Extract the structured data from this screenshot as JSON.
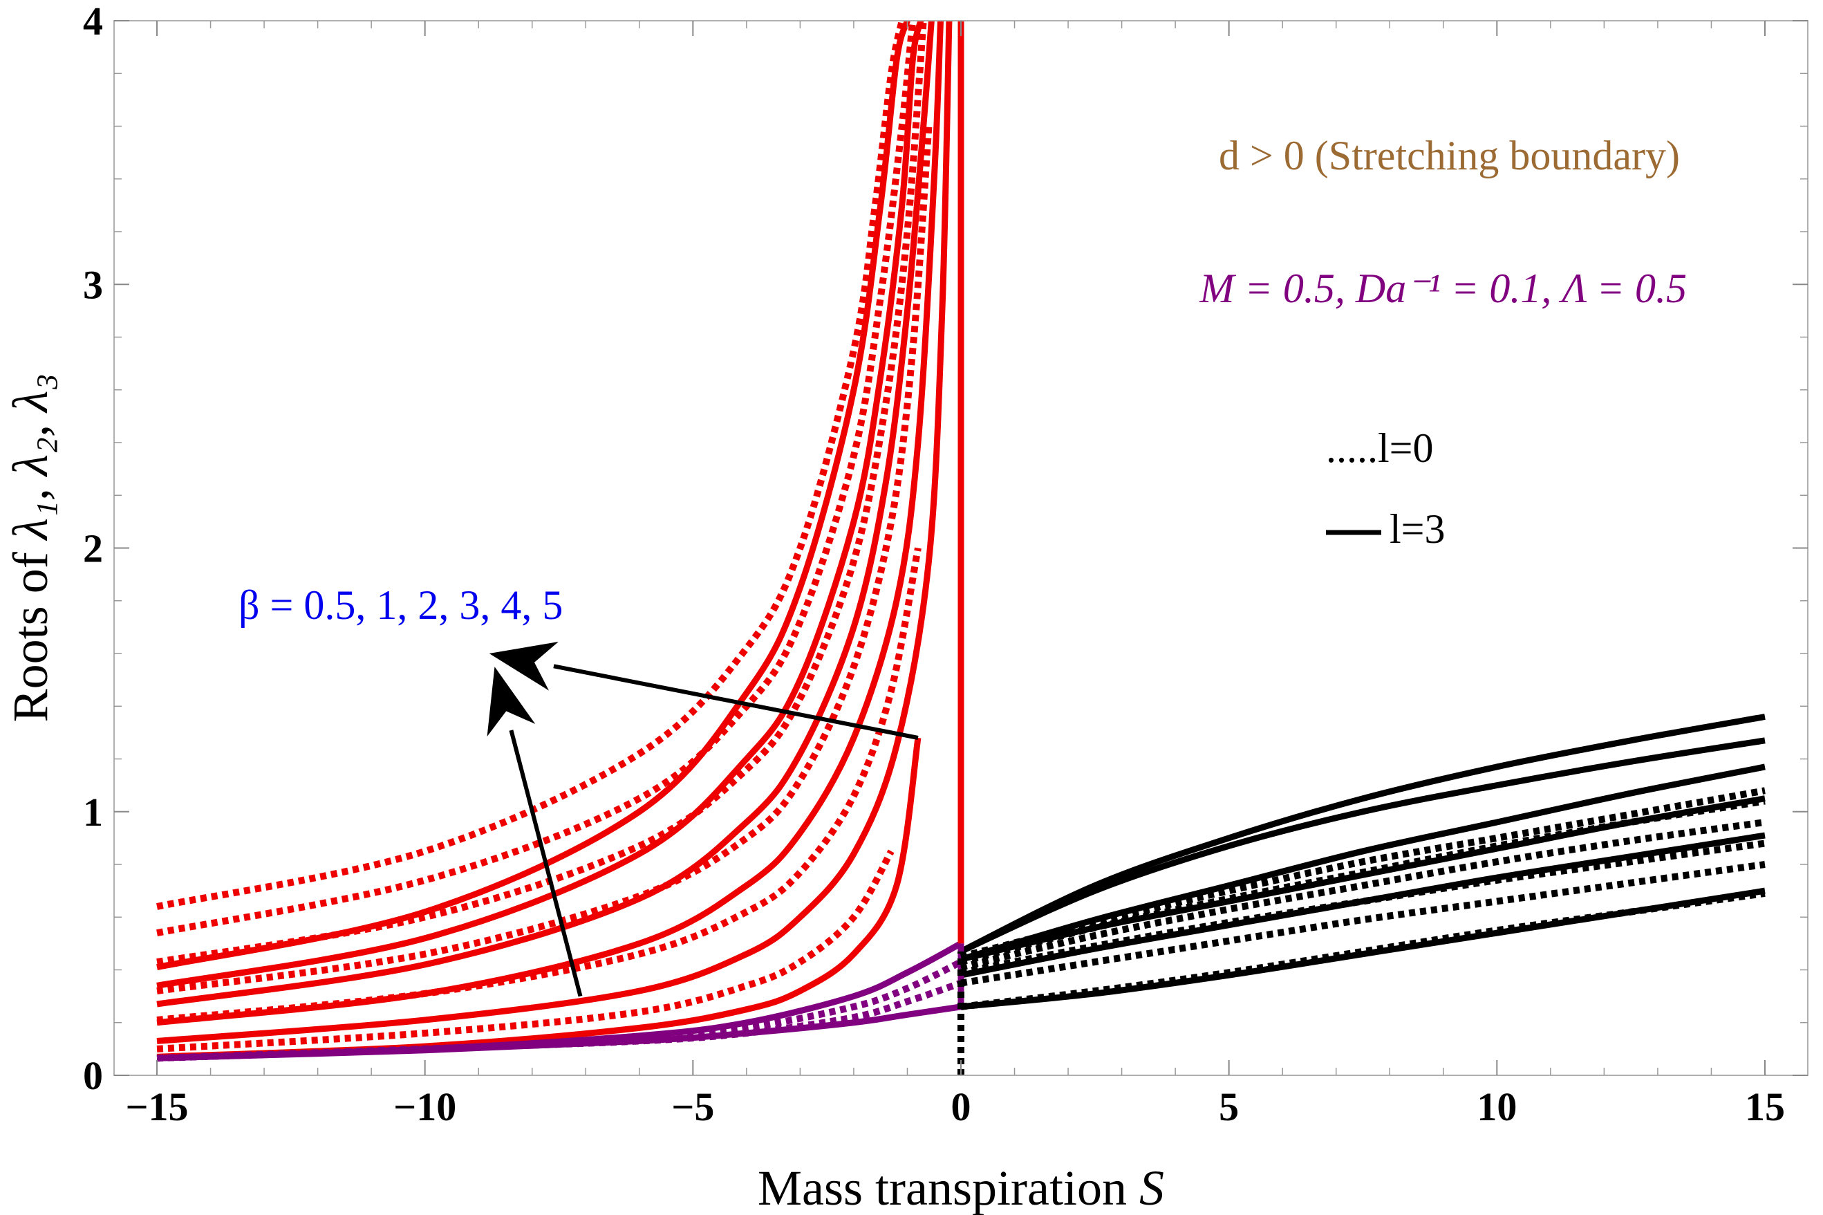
{
  "chart_data": {
    "type": "line",
    "title": "",
    "xlabel": "Mass transpiration",
    "xlabel_var": "S",
    "ylabel_prefix": "Roots of ",
    "ylabel_vars": "λ₁, λ₂, λ₃",
    "xlim": [
      -15.8,
      15.8
    ],
    "ylim": [
      0,
      4
    ],
    "x_ticks": [
      -15,
      -10,
      -5,
      0,
      5,
      10,
      15
    ],
    "x_tick_labels": [
      "−15",
      "−10",
      "−5",
      "0",
      "5",
      "10",
      "15"
    ],
    "y_ticks": [
      0,
      1,
      2,
      3,
      4
    ],
    "y_tick_labels": [
      "0",
      "1",
      "2",
      "3",
      "4"
    ],
    "colors": {
      "red": "#ee0000",
      "purple": "#800080",
      "black": "#000000",
      "blue": "#0000ee",
      "brown": "#9c6a33"
    },
    "annotations": {
      "regime": "d > 0 (Stretching boundary)",
      "params": "M = 0.5, Da⁻¹ = 0.1, Λ = 0.5",
      "beta": "β = 0.5, 1, 2, 3, 4, 5",
      "legend_dotted": ".....l=0",
      "legend_solid": "l=3"
    },
    "series": [
      {
        "name": "red l=3 β1",
        "color": "red",
        "style": "solid",
        "x": [
          -15,
          -10,
          -6,
          -4,
          -3,
          -2,
          -1.5,
          -1.2,
          -1.0
        ],
        "y": [
          0.41,
          0.62,
          1.0,
          1.45,
          1.85,
          2.6,
          3.3,
          3.85,
          4.0
        ]
      },
      {
        "name": "red l=3 β2",
        "color": "red",
        "style": "solid",
        "x": [
          -15,
          -10,
          -6,
          -4,
          -3,
          -2,
          -1.5,
          -1.1,
          -0.9,
          -0.75
        ],
        "y": [
          0.34,
          0.52,
          0.84,
          1.2,
          1.5,
          2.1,
          2.65,
          3.3,
          3.85,
          4.0
        ]
      },
      {
        "name": "red l=3 β3",
        "color": "red",
        "style": "solid",
        "x": [
          -15,
          -10,
          -6,
          -4,
          -3,
          -2,
          -1.4,
          -1.0,
          -0.7,
          -0.55
        ],
        "y": [
          0.27,
          0.42,
          0.67,
          0.96,
          1.22,
          1.7,
          2.25,
          2.9,
          3.6,
          4.0
        ]
      },
      {
        "name": "red l=3 β4",
        "color": "red",
        "style": "solid",
        "x": [
          -15,
          -10,
          -6,
          -4,
          -3,
          -2,
          -1.2,
          -0.8,
          -0.5,
          -0.38
        ],
        "y": [
          0.2,
          0.31,
          0.5,
          0.72,
          0.92,
          1.28,
          1.8,
          2.4,
          3.4,
          4.0
        ]
      },
      {
        "name": "red l=3 β5",
        "color": "red",
        "style": "solid",
        "x": [
          -15,
          -10,
          -6,
          -4,
          -3,
          -2,
          -1.2,
          -0.6,
          -0.35,
          -0.22
        ],
        "y": [
          0.13,
          0.21,
          0.32,
          0.46,
          0.6,
          0.84,
          1.25,
          1.95,
          2.9,
          4.0
        ]
      },
      {
        "name": "red l=3 β6",
        "color": "red",
        "style": "solid",
        "x": [
          -15,
          -10,
          -6,
          -4,
          -3,
          -2,
          -1.2,
          -0.8
        ],
        "y": [
          0.07,
          0.11,
          0.18,
          0.25,
          0.32,
          0.46,
          0.72,
          1.28
        ]
      },
      {
        "name": "red l=0 β1",
        "color": "red",
        "style": "dotted",
        "x": [
          -15,
          -10,
          -6,
          -4,
          -3,
          -2,
          -1.6,
          -1.3,
          -1.1
        ],
        "y": [
          0.64,
          0.85,
          1.22,
          1.62,
          2.0,
          2.75,
          3.3,
          3.8,
          4.0
        ]
      },
      {
        "name": "red l=0 β2",
        "color": "red",
        "style": "dotted",
        "x": [
          -15,
          -10,
          -6,
          -4,
          -3,
          -2,
          -1.5,
          -1.1,
          -0.9
        ],
        "y": [
          0.54,
          0.74,
          1.05,
          1.4,
          1.72,
          2.35,
          2.95,
          3.6,
          4.0
        ]
      },
      {
        "name": "red l=0 β3",
        "color": "red",
        "style": "dotted",
        "x": [
          -15,
          -10,
          -6,
          -4,
          -3,
          -2,
          -1.4,
          -1.0,
          -0.7
        ],
        "y": [
          0.43,
          0.6,
          0.87,
          1.16,
          1.43,
          1.95,
          2.55,
          3.2,
          4.0
        ]
      },
      {
        "name": "red l=0 β4",
        "color": "red",
        "style": "dotted",
        "x": [
          -15,
          -10,
          -6,
          -4,
          -3,
          -2,
          -1.3,
          -0.9,
          -0.6
        ],
        "y": [
          0.32,
          0.46,
          0.68,
          0.9,
          1.12,
          1.55,
          2.1,
          2.75,
          3.6
        ]
      },
      {
        "name": "red l=0 β5",
        "color": "red",
        "style": "dotted",
        "x": [
          -15,
          -10,
          -6,
          -4,
          -3,
          -2,
          -1.3,
          -0.8
        ],
        "y": [
          0.21,
          0.31,
          0.46,
          0.62,
          0.77,
          1.06,
          1.46,
          2.0
        ]
      },
      {
        "name": "red l=0 β6",
        "color": "red",
        "style": "dotted",
        "x": [
          -15,
          -10,
          -6,
          -4,
          -3,
          -2,
          -1.3
        ],
        "y": [
          0.1,
          0.16,
          0.24,
          0.34,
          0.43,
          0.6,
          0.85
        ]
      },
      {
        "name": "purple l=3 a",
        "color": "purple",
        "style": "solid",
        "x": [
          -15,
          -10,
          -6,
          -4,
          -2,
          -1,
          0
        ],
        "y": [
          0.065,
          0.1,
          0.15,
          0.2,
          0.3,
          0.39,
          0.5
        ]
      },
      {
        "name": "purple l=3 b",
        "color": "purple",
        "style": "solid",
        "x": [
          -15,
          -10,
          -6,
          -4,
          -2,
          -1,
          0
        ],
        "y": [
          0.065,
          0.095,
          0.13,
          0.16,
          0.2,
          0.23,
          0.26
        ]
      },
      {
        "name": "purple l=0 a",
        "color": "purple",
        "style": "dotted",
        "x": [
          -15,
          -10,
          -6,
          -4,
          -2,
          -1,
          0
        ],
        "y": [
          0.065,
          0.1,
          0.14,
          0.18,
          0.26,
          0.33,
          0.43
        ]
      },
      {
        "name": "purple l=0 b",
        "color": "purple",
        "style": "dotted",
        "x": [
          -15,
          -10,
          -6,
          -4,
          -2,
          -1,
          0
        ],
        "y": [
          0.065,
          0.1,
          0.13,
          0.16,
          0.22,
          0.28,
          0.35
        ]
      },
      {
        "name": "black l=3 β1",
        "color": "black",
        "style": "solid",
        "x": [
          0,
          2.5,
          5,
          7.5,
          10,
          12.5,
          15
        ],
        "y": [
          0.47,
          0.72,
          0.9,
          1.05,
          1.17,
          1.27,
          1.36
        ]
      },
      {
        "name": "black l=3 β2",
        "color": "black",
        "style": "solid",
        "x": [
          0,
          2.5,
          5,
          7.5,
          10,
          12.5,
          15
        ],
        "y": [
          0.47,
          0.7,
          0.87,
          1.0,
          1.1,
          1.19,
          1.27
        ]
      },
      {
        "name": "black l=3 β3",
        "color": "black",
        "style": "solid",
        "x": [
          0,
          2.5,
          5,
          7.5,
          10,
          12.5,
          15
        ],
        "y": [
          0.44,
          0.59,
          0.72,
          0.85,
          0.96,
          1.07,
          1.17
        ]
      },
      {
        "name": "black l=3 β4",
        "color": "black",
        "style": "solid",
        "x": [
          0,
          2.5,
          5,
          7.5,
          10,
          12.5,
          15
        ],
        "y": [
          0.44,
          0.56,
          0.66,
          0.76,
          0.86,
          0.96,
          1.05
        ]
      },
      {
        "name": "black l=3 β5",
        "color": "black",
        "style": "solid",
        "x": [
          0,
          2.5,
          5,
          7.5,
          10,
          12.5,
          15
        ],
        "y": [
          0.38,
          0.48,
          0.57,
          0.66,
          0.75,
          0.83,
          0.91
        ]
      },
      {
        "name": "black l=3 β6",
        "color": "black",
        "style": "solid",
        "x": [
          0,
          2.5,
          5,
          7.5,
          10,
          12.5,
          15
        ],
        "y": [
          0.26,
          0.31,
          0.38,
          0.46,
          0.54,
          0.62,
          0.7
        ]
      },
      {
        "name": "black l=0 β1",
        "color": "black",
        "style": "dotted",
        "x": [
          0,
          2.5,
          5,
          7.5,
          10,
          12.5,
          15
        ],
        "y": [
          0.45,
          0.58,
          0.7,
          0.81,
          0.9,
          0.99,
          1.08
        ]
      },
      {
        "name": "black l=0 β2",
        "color": "black",
        "style": "dotted",
        "x": [
          0,
          2.5,
          5,
          7.5,
          10,
          12.5,
          15
        ],
        "y": [
          0.43,
          0.56,
          0.67,
          0.77,
          0.87,
          0.96,
          1.04
        ]
      },
      {
        "name": "black l=0 β3",
        "color": "black",
        "style": "dotted",
        "x": [
          0,
          2.5,
          5,
          7.5,
          10,
          12.5,
          15
        ],
        "y": [
          0.41,
          0.53,
          0.63,
          0.72,
          0.81,
          0.89,
          0.96
        ]
      },
      {
        "name": "black l=0 β4",
        "color": "black",
        "style": "dotted",
        "x": [
          0,
          2.5,
          5,
          7.5,
          10,
          12.5,
          15
        ],
        "y": [
          0.39,
          0.49,
          0.58,
          0.66,
          0.74,
          0.81,
          0.88
        ]
      },
      {
        "name": "black l=0 β5",
        "color": "black",
        "style": "dotted",
        "x": [
          0,
          2.5,
          5,
          7.5,
          10,
          12.5,
          15
        ],
        "y": [
          0.35,
          0.43,
          0.51,
          0.59,
          0.66,
          0.73,
          0.8
        ]
      },
      {
        "name": "black l=0 β6",
        "color": "black",
        "style": "dotted",
        "x": [
          0,
          2.5,
          5,
          7.5,
          10,
          12.5,
          15
        ],
        "y": [
          0.26,
          0.32,
          0.39,
          0.47,
          0.55,
          0.62,
          0.69
        ]
      },
      {
        "name": "red vertical S=0",
        "color": "red",
        "style": "solid",
        "x": [
          0,
          0
        ],
        "y": [
          0.5,
          4.0
        ]
      },
      {
        "name": "purple vertical S=0",
        "color": "purple",
        "style": "solid",
        "x": [
          0,
          0
        ],
        "y": [
          0.25,
          0.5
        ]
      },
      {
        "name": "black dotted vertical S=0",
        "color": "black",
        "style": "dotted",
        "x": [
          0,
          0
        ],
        "y": [
          0,
          0.47
        ]
      }
    ],
    "arrows": [
      {
        "name": "arrow-horizontal",
        "from": [
          -0.8,
          1.28
        ],
        "to": [
          -8.8,
          1.6
        ]
      },
      {
        "name": "arrow-vertical",
        "from": [
          -7.1,
          0.3
        ],
        "to": [
          -8.7,
          1.55
        ]
      }
    ]
  }
}
